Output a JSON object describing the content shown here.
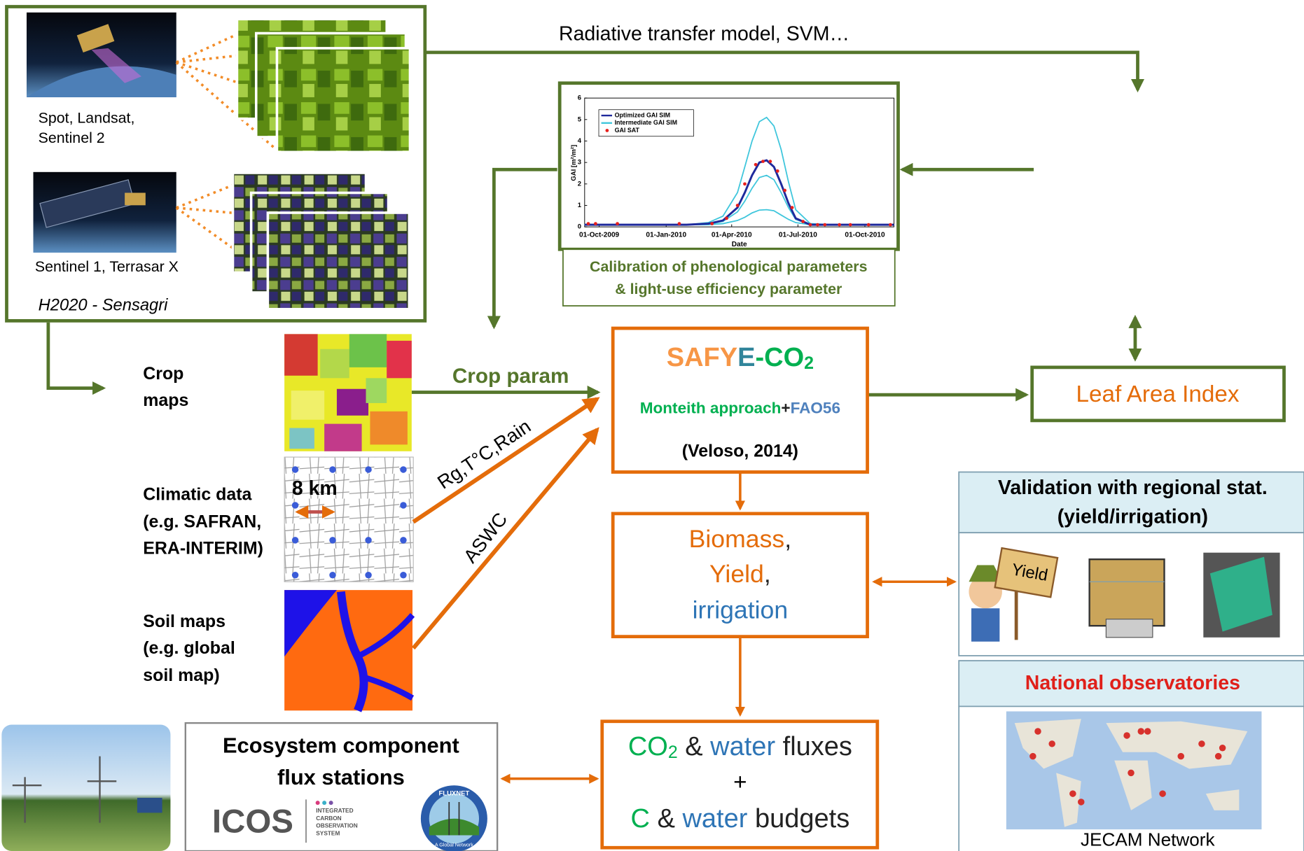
{
  "top_arrow_label": "Radiative transfer model, SVM…",
  "satellites": {
    "optical_lines": [
      "Spot, Landsat,",
      "Sentinel 2"
    ],
    "radar": "Sentinel 1, Terrasar X",
    "project": "H2020 - Sensagri"
  },
  "calibration": {
    "lines": [
      "Calibration of phenological parameters",
      "& light-use efficiency parameter"
    ],
    "inset_chart": {
      "type": "line",
      "xlabel": "Date",
      "ylabel": "GAI [m²/m²]",
      "xlim": [
        -20,
        405
      ],
      "ylim": [
        0,
        6
      ],
      "yticks": [
        0,
        1,
        2,
        3,
        4,
        5,
        6
      ],
      "xticks": [
        {
          "value": 0,
          "label": "01-Oct-2009"
        },
        {
          "value": 92,
          "label": "01-Jan-2010"
        },
        {
          "value": 182,
          "label": "01-Apr-2010"
        },
        {
          "value": 273,
          "label": "01-Jul-2010"
        },
        {
          "value": 365,
          "label": "01-Oct-2010"
        }
      ],
      "x": [
        -20,
        0,
        40,
        80,
        120,
        150,
        170,
        190,
        200,
        210,
        220,
        230,
        240,
        250,
        260,
        270,
        290,
        320,
        360,
        405
      ],
      "series": [
        {
          "name": "Optimized GAI SIM",
          "color": "#1f2a9c",
          "values": [
            0.1,
            0.1,
            0.1,
            0.1,
            0.1,
            0.15,
            0.3,
            0.9,
            1.6,
            2.4,
            3.0,
            3.1,
            2.8,
            2.0,
            1.1,
            0.4,
            0.1,
            0.1,
            0.1,
            0.1
          ]
        },
        {
          "name": "Intermediate GAI SIM",
          "color": "#3fc6dc",
          "curves": [
            [
              0.1,
              0.1,
              0.1,
              0.1,
              0.1,
              0.2,
              0.5,
              1.6,
              2.8,
              4.0,
              4.9,
              5.1,
              4.7,
              3.6,
              2.1,
              0.8,
              0.15,
              0.1,
              0.1,
              0.1
            ],
            [
              0.1,
              0.1,
              0.1,
              0.1,
              0.1,
              0.12,
              0.25,
              0.7,
              1.2,
              1.8,
              2.3,
              2.4,
              2.2,
              1.6,
              0.9,
              0.35,
              0.1,
              0.1,
              0.1,
              0.1
            ],
            [
              0.1,
              0.1,
              0.1,
              0.1,
              0.1,
              0.1,
              0.15,
              0.3,
              0.45,
              0.65,
              0.78,
              0.8,
              0.75,
              0.55,
              0.35,
              0.2,
              0.1,
              0.1,
              0.1,
              0.1
            ]
          ]
        },
        {
          "name": "GAI SAT",
          "color": "#e8201c",
          "x": [
            -15,
            -5,
            25,
            110,
            155,
            175,
            190,
            200,
            215,
            225,
            235,
            245,
            255,
            265,
            280,
            290,
            300,
            310,
            330,
            345,
            370,
            400
          ],
          "values": [
            0.15,
            0.15,
            0.15,
            0.15,
            0.15,
            0.4,
            1.0,
            2.0,
            2.9,
            3.05,
            3.05,
            2.6,
            1.7,
            0.9,
            0.25,
            0.1,
            0.1,
            0.1,
            0.1,
            0.1,
            0.1,
            0.1
          ]
        }
      ]
    }
  },
  "inputs": [
    {
      "lines": [
        "Crop",
        "maps"
      ]
    },
    {
      "lines": [
        "Climatic data",
        "(e.g. SAFRAN,",
        "ERA-INTERIM)"
      ],
      "scale_label": "8 km"
    },
    {
      "lines": [
        "Soil maps",
        "(e.g. global",
        "soil map)"
      ]
    }
  ],
  "arrow_labels": {
    "crop": "Crop param",
    "climate": "Rg,T°C,Rain",
    "soil": "ASWC"
  },
  "model": {
    "name_parts": [
      "SAFY",
      "E",
      "-CO",
      "2"
    ],
    "approach_parts": [
      "Monteith approach",
      "+",
      "FAO56"
    ],
    "reference": "(Veloso, 2014)"
  },
  "lai": "Leaf Area Index",
  "outputs": {
    "parts": [
      "Biomass",
      ",",
      "Yield",
      ",",
      "irrigation"
    ]
  },
  "fluxes": {
    "line1": [
      "CO",
      "2",
      "&",
      "water",
      "fluxes"
    ],
    "plus": "+",
    "line2": [
      "C",
      "&",
      "water",
      "budgets"
    ]
  },
  "flux_stations": {
    "lines": [
      "Ecosystem component",
      "flux stations"
    ],
    "icos": "ICOS",
    "icos_sub": [
      "INTEGRATED",
      "CARBON",
      "OBSERVATION",
      "SYSTEM"
    ],
    "fluxnet": "FLUXNET",
    "fluxnet_sub": "A Global Network"
  },
  "validation": {
    "lines": [
      "Validation with regional stat.",
      "(yield/irrigation)"
    ],
    "sign": "Yield"
  },
  "observatories": {
    "title": "National observatories",
    "network": "JECAM Network"
  }
}
